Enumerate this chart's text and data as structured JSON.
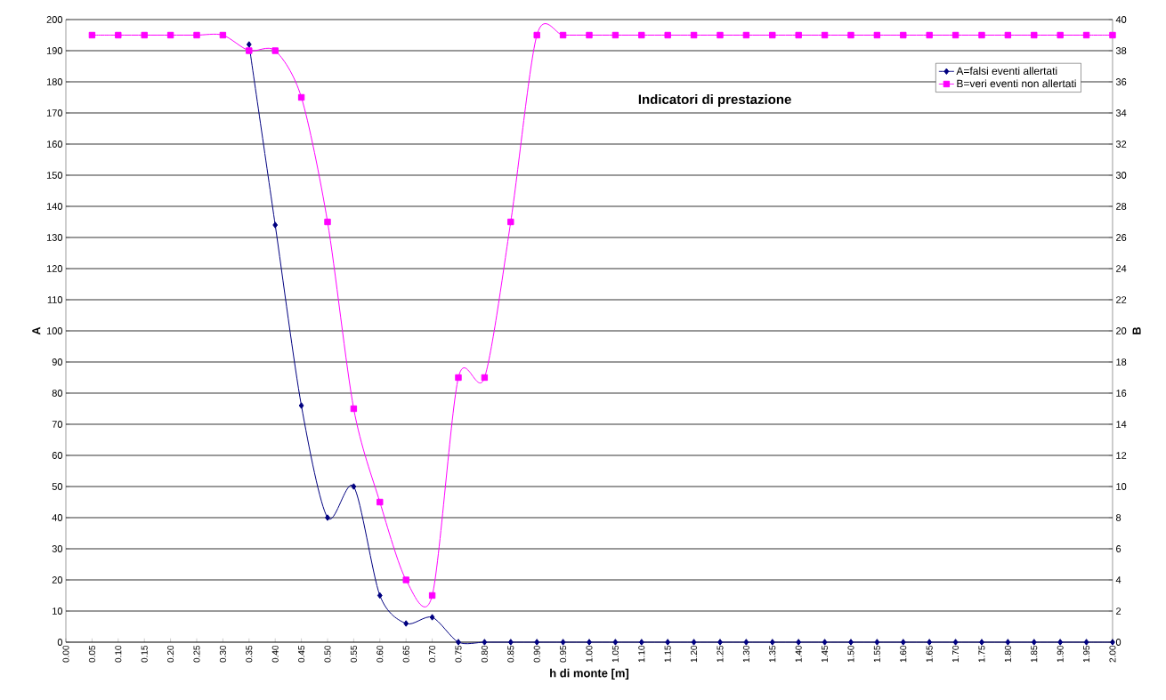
{
  "chart_data": {
    "type": "line",
    "title": "Indicatori di prestazione",
    "xlabel": "h di monte [m]",
    "ylabel": "A",
    "y2label": "B",
    "categories": [
      "0.00",
      "0.05",
      "0.10",
      "0.15",
      "0.20",
      "0.25",
      "0.30",
      "0.35",
      "0.40",
      "0.45",
      "0.50",
      "0.55",
      "0.60",
      "0.65",
      "0.70",
      "0.75",
      "0.80",
      "0.85",
      "0.90",
      "0.95",
      "1.00",
      "1.05",
      "1.10",
      "1.15",
      "1.20",
      "1.25",
      "1.30",
      "1.35",
      "1.40",
      "1.45",
      "1.50",
      "1.55",
      "1.60",
      "1.65",
      "1.70",
      "1.75",
      "1.80",
      "1.85",
      "1.90",
      "1.95",
      "2.00"
    ],
    "series": [
      {
        "name": "A=falsi eventi allertati",
        "color": "#000080",
        "marker": "diamond",
        "values": [
          null,
          null,
          null,
          null,
          null,
          null,
          null,
          192,
          134,
          76,
          40,
          50,
          15,
          6,
          8,
          0,
          0,
          0,
          0,
          0,
          0,
          0,
          0,
          0,
          0,
          0,
          0,
          0,
          0,
          0,
          0,
          0,
          0,
          0,
          0,
          0,
          0,
          0,
          0,
          0,
          0
        ]
      },
      {
        "name": "B=veri eventi non allertati",
        "color": "#ff00ff",
        "marker": "square",
        "axis": "y2",
        "values": [
          null,
          39,
          39,
          39,
          39,
          39,
          39,
          38,
          38,
          35,
          27,
          15,
          9,
          4,
          3,
          17,
          17,
          27,
          39,
          39,
          39,
          39,
          39,
          39,
          39,
          39,
          39,
          39,
          39,
          39,
          39,
          39,
          39,
          39,
          39,
          39,
          39,
          39,
          39,
          39,
          39
        ]
      }
    ],
    "ylim": [
      0,
      200
    ],
    "yticks": [
      0,
      10,
      20,
      30,
      40,
      50,
      60,
      70,
      80,
      90,
      100,
      110,
      120,
      130,
      140,
      150,
      160,
      170,
      180,
      190,
      200
    ],
    "y2lim": [
      0,
      40
    ],
    "y2ticks": [
      0,
      2,
      4,
      6,
      8,
      10,
      12,
      14,
      16,
      18,
      20,
      22,
      24,
      26,
      28,
      30,
      32,
      34,
      36,
      38,
      40
    ],
    "grid": "y",
    "legend": "top right"
  }
}
